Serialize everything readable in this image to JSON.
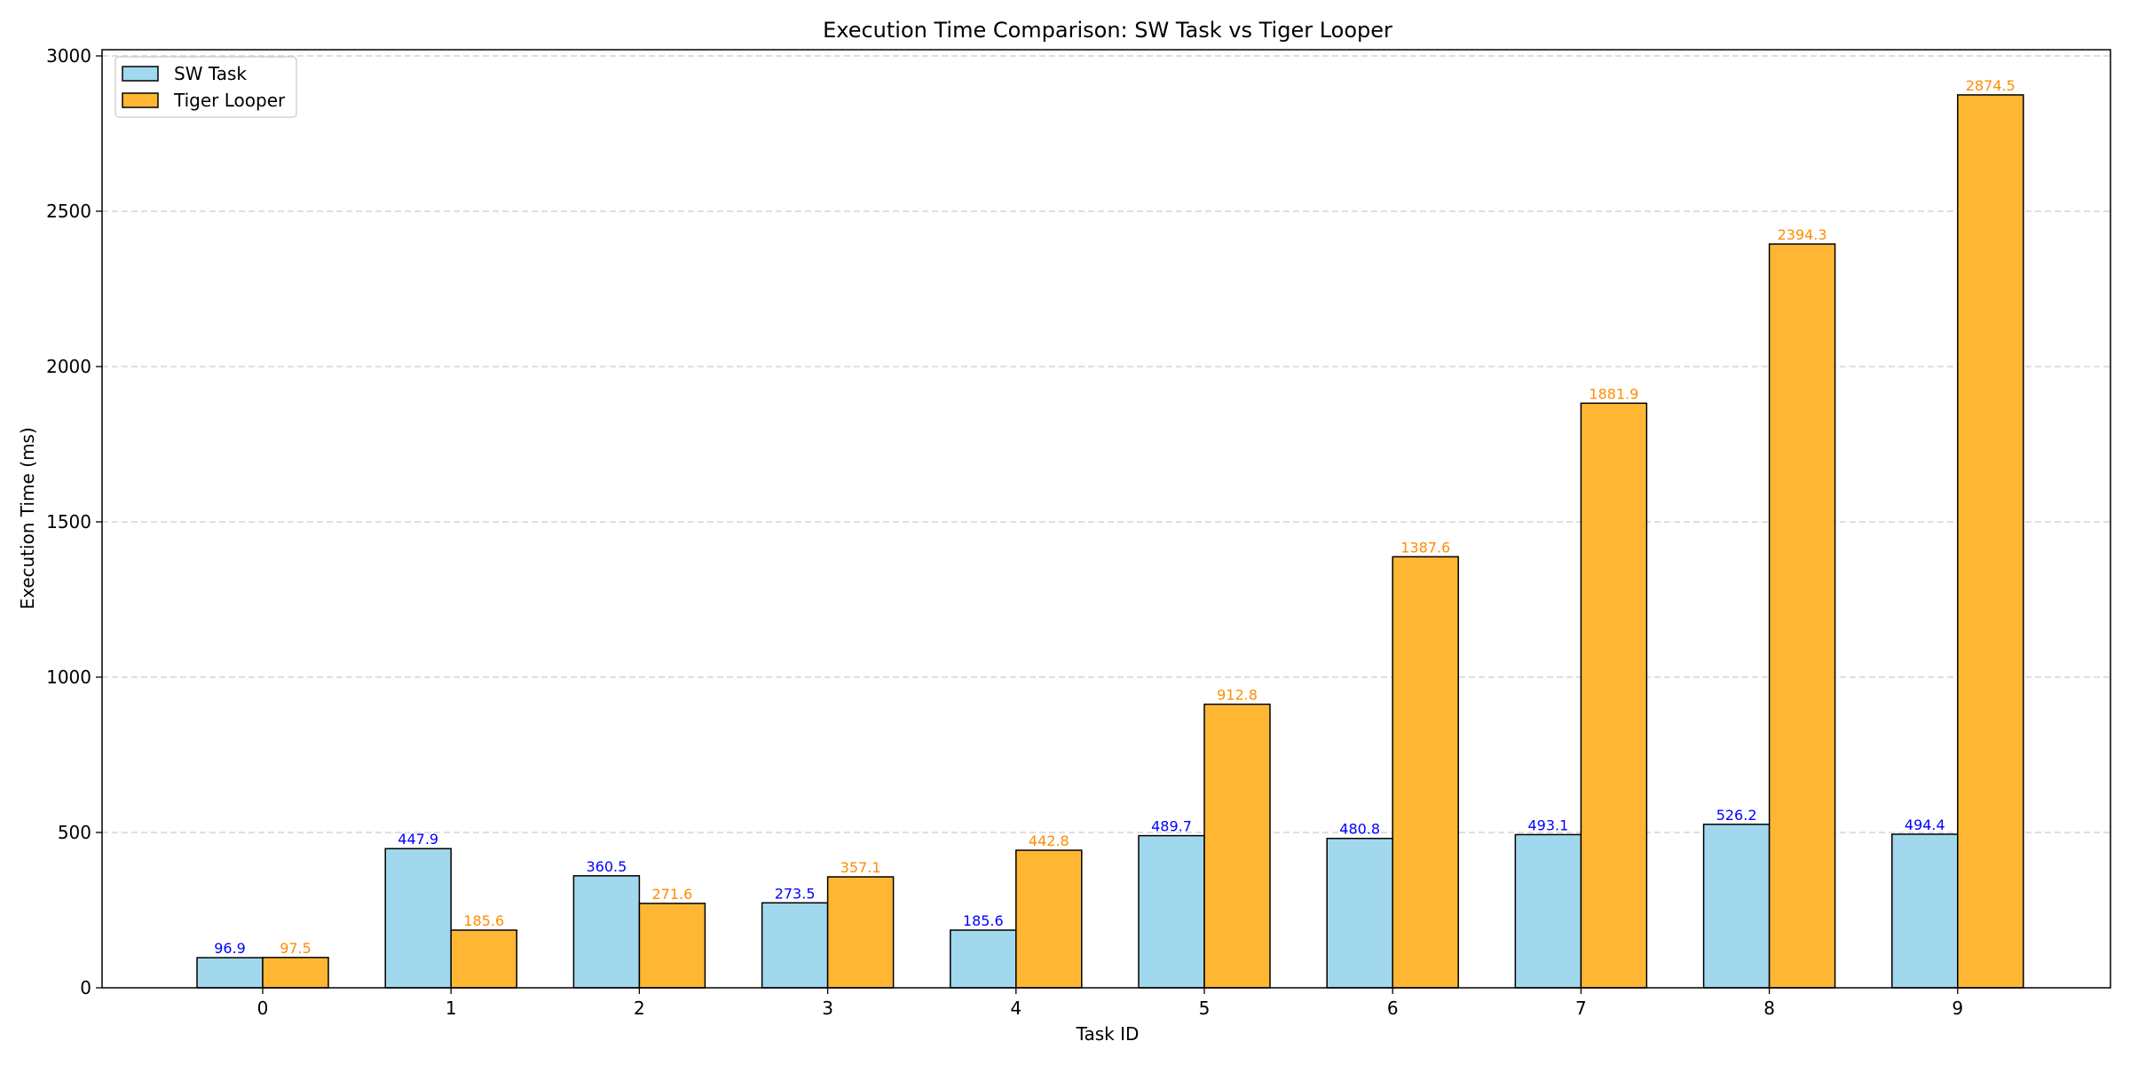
{
  "chart_data": {
    "type": "bar",
    "title": "Execution Time Comparison: SW Task vs Tiger Looper",
    "xlabel": "Task ID",
    "ylabel": "Execution Time (ms)",
    "categories": [
      "0",
      "1",
      "2",
      "3",
      "4",
      "5",
      "6",
      "7",
      "8",
      "9"
    ],
    "series": [
      {
        "name": "SW Task",
        "values": [
          96.9,
          447.9,
          360.5,
          273.5,
          185.6,
          489.7,
          480.8,
          493.1,
          526.2,
          494.4
        ],
        "labels": [
          "96.9",
          "447.9",
          "360.5",
          "273.5",
          "185.6",
          "489.7",
          "480.8",
          "493.1",
          "526.2",
          "494.4"
        ],
        "color": "#a2d8ee",
        "label_color": "#0000ff"
      },
      {
        "name": "Tiger Looper",
        "values": [
          97.5,
          185.6,
          271.6,
          357.1,
          442.8,
          912.8,
          1387.6,
          1881.9,
          2394.3,
          2874.5
        ],
        "labels": [
          "97.5",
          "185.6",
          "271.6",
          "357.1",
          "442.8",
          "912.8",
          "1387.6",
          "1881.9",
          "2394.3",
          "2874.5"
        ],
        "color": "#ffb733",
        "label_color": "#ff8c00"
      }
    ],
    "yticks": [
      "0",
      "500",
      "1000",
      "1500",
      "2000",
      "2500",
      "3000"
    ],
    "ylim": [
      0,
      3020
    ],
    "grid": "y-dashed",
    "legend": "top-left",
    "edge_color": "#000000",
    "grid_color": "#cccccc"
  }
}
